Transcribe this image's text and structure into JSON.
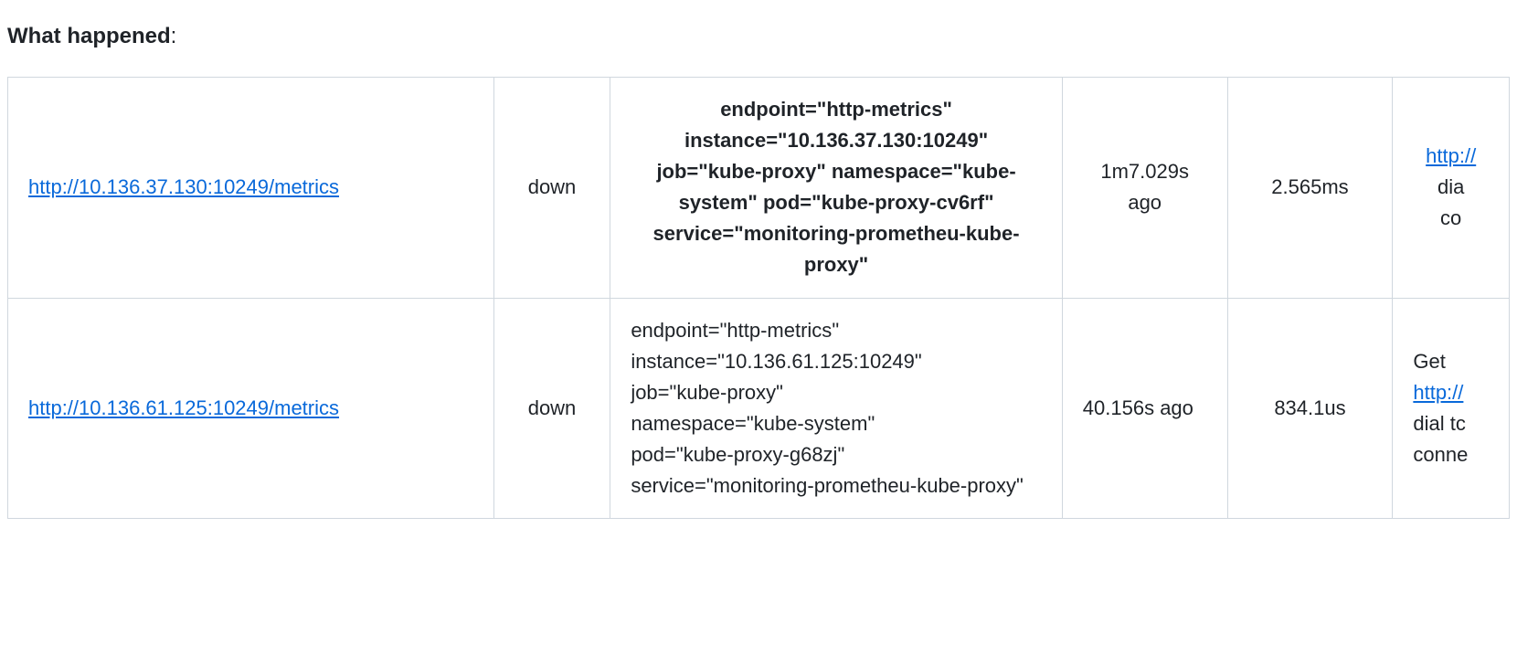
{
  "heading": "What happened",
  "colors": {
    "link": "#0969da",
    "border": "#d0d7de",
    "text": "#1f2328",
    "background": "#ffffff"
  },
  "rows": [
    {
      "endpoint_url": "http://10.136.37.130:10249/metrics",
      "state": "down",
      "labels": {
        "endpoint": "http-metrics",
        "instance": "10.136.37.130:10249",
        "job": "kube-proxy",
        "namespace": "kube-system",
        "pod": "kube-proxy-cv6rf",
        "service": "monitoring-prometheu-kube-proxy"
      },
      "age": "1m7.029s ago",
      "duration": "2.565ms",
      "error_prefix": "",
      "error_link": "http://",
      "error_suffix_line1": "dia",
      "error_suffix_line2": "co"
    },
    {
      "endpoint_url": "http://10.136.61.125:10249/metrics",
      "state": "down",
      "labels": {
        "endpoint": "http-metrics",
        "instance": "10.136.61.125:10249",
        "job": "kube-proxy",
        "namespace": "kube-system",
        "pod": "kube-proxy-g68zj",
        "service": "monitoring-prometheu-kube-proxy"
      },
      "age": "40.156s ago",
      "duration": "834.1us",
      "error_prefix": "Get",
      "error_link": "http://",
      "error_suffix_line1": "dial tc",
      "error_suffix_line2": "conne"
    }
  ]
}
